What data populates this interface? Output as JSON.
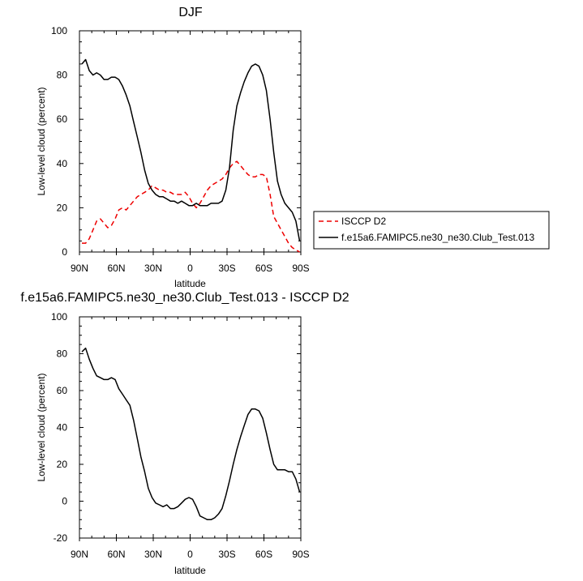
{
  "chart_data": [
    {
      "type": "line",
      "title": "DJF",
      "xlabel": "latitude",
      "ylabel": "Low-level cloud (percent)",
      "xlim": [
        90,
        -90
      ],
      "ylim": [
        0,
        100
      ],
      "xticks": [
        90,
        60,
        30,
        0,
        -30,
        -60,
        -90
      ],
      "xtick_labels": [
        "90N",
        "60N",
        "30N",
        "0",
        "30S",
        "60S",
        "90S"
      ],
      "yticks": [
        0,
        20,
        40,
        60,
        80,
        100
      ],
      "ytick_labels": [
        "0",
        "20",
        "40",
        "60",
        "80",
        "100"
      ],
      "legend_position": "right",
      "series": [
        {
          "name": "ISCCP D2",
          "color": "#ee0000",
          "style": "dashed",
          "x": [
            88,
            85,
            82,
            79,
            76,
            73,
            70,
            67,
            64,
            61,
            58,
            55,
            52,
            49,
            46,
            43,
            40,
            37,
            34,
            31,
            28,
            25,
            22,
            19,
            16,
            13,
            10,
            7,
            4,
            1,
            -2,
            -5,
            -8,
            -11,
            -14,
            -17,
            -20,
            -23,
            -26,
            -29,
            -32,
            -35,
            -38,
            -41,
            -44,
            -47,
            -50,
            -53,
            -56,
            -59,
            -62,
            -65,
            -68,
            -71,
            -74,
            -77,
            -80,
            -83,
            -86,
            -89
          ],
          "y": [
            4,
            4,
            6,
            10,
            14,
            15,
            13,
            11,
            12,
            15,
            19,
            20,
            19,
            21,
            23,
            25,
            26,
            27,
            28,
            30,
            29,
            28,
            28,
            27,
            27,
            26,
            26,
            26,
            27,
            25,
            22,
            20,
            22,
            25,
            28,
            30,
            31,
            32,
            33,
            35,
            38,
            40,
            41,
            39,
            37,
            35,
            34,
            34,
            35,
            35,
            34,
            26,
            16,
            13,
            10,
            7,
            4,
            2,
            1,
            0
          ]
        },
        {
          "name": "f.e15a6.FAMIPC5.ne30_ne30.Club_Test.013",
          "color": "#000000",
          "style": "solid",
          "x": [
            88,
            85,
            82,
            79,
            76,
            73,
            70,
            67,
            64,
            61,
            58,
            55,
            52,
            49,
            46,
            43,
            40,
            37,
            34,
            31,
            28,
            25,
            22,
            19,
            16,
            13,
            10,
            7,
            4,
            1,
            -2,
            -5,
            -8,
            -11,
            -14,
            -17,
            -20,
            -23,
            -26,
            -29,
            -32,
            -35,
            -38,
            -41,
            -44,
            -47,
            -50,
            -53,
            -56,
            -59,
            -62,
            -65,
            -68,
            -71,
            -74,
            -77,
            -80,
            -83,
            -86,
            -89
          ],
          "y": [
            85,
            87,
            82,
            80,
            81,
            80,
            78,
            78,
            79,
            79,
            78,
            75,
            71,
            66,
            59,
            52,
            45,
            37,
            31,
            28,
            26,
            25,
            25,
            24,
            23,
            23,
            22,
            23,
            22,
            21,
            21,
            22,
            21,
            21,
            21,
            22,
            22,
            22,
            23,
            28,
            38,
            55,
            66,
            72,
            77,
            81,
            84,
            85,
            84,
            80,
            73,
            60,
            45,
            32,
            26,
            22,
            20,
            18,
            14,
            5
          ]
        }
      ]
    },
    {
      "type": "line",
      "title": "f.e15a6.FAMIPC5.ne30_ne30.Club_Test.013 - ISCCP D2",
      "xlabel": "latitude",
      "ylabel": "Low-level cloud (percent)",
      "xlim": [
        90,
        -90
      ],
      "ylim": [
        -20,
        100
      ],
      "xticks": [
        90,
        60,
        30,
        0,
        -30,
        -60,
        -90
      ],
      "xtick_labels": [
        "90N",
        "60N",
        "30N",
        "0",
        "30S",
        "60S",
        "90S"
      ],
      "yticks": [
        -20,
        0,
        20,
        40,
        60,
        80,
        100
      ],
      "ytick_labels": [
        "-20",
        "0",
        "20",
        "40",
        "60",
        "80",
        "100"
      ],
      "series": [
        {
          "color": "#000000",
          "style": "solid",
          "x": [
            88,
            85,
            82,
            79,
            76,
            73,
            70,
            67,
            64,
            61,
            58,
            55,
            52,
            49,
            46,
            43,
            40,
            37,
            34,
            31,
            28,
            25,
            22,
            19,
            16,
            13,
            10,
            7,
            4,
            1,
            -2,
            -5,
            -8,
            -11,
            -14,
            -17,
            -20,
            -23,
            -26,
            -29,
            -32,
            -35,
            -38,
            -41,
            -44,
            -47,
            -50,
            -53,
            -56,
            -59,
            -62,
            -65,
            -68,
            -71,
            -74,
            -77,
            -80,
            -83,
            -86,
            -89
          ],
          "y": [
            81,
            83,
            77,
            72,
            68,
            67,
            66,
            66,
            67,
            66,
            61,
            58,
            55,
            52,
            44,
            34,
            24,
            16,
            7,
            2,
            -1,
            -2,
            -3,
            -2,
            -4,
            -4,
            -3,
            -1,
            1,
            2,
            1,
            -3,
            -8,
            -9,
            -10,
            -10,
            -9,
            -7,
            -4,
            3,
            11,
            20,
            28,
            35,
            41,
            47,
            50,
            50,
            49,
            45,
            37,
            28,
            20,
            17,
            17,
            17,
            16,
            16,
            12,
            5
          ]
        }
      ]
    }
  ]
}
